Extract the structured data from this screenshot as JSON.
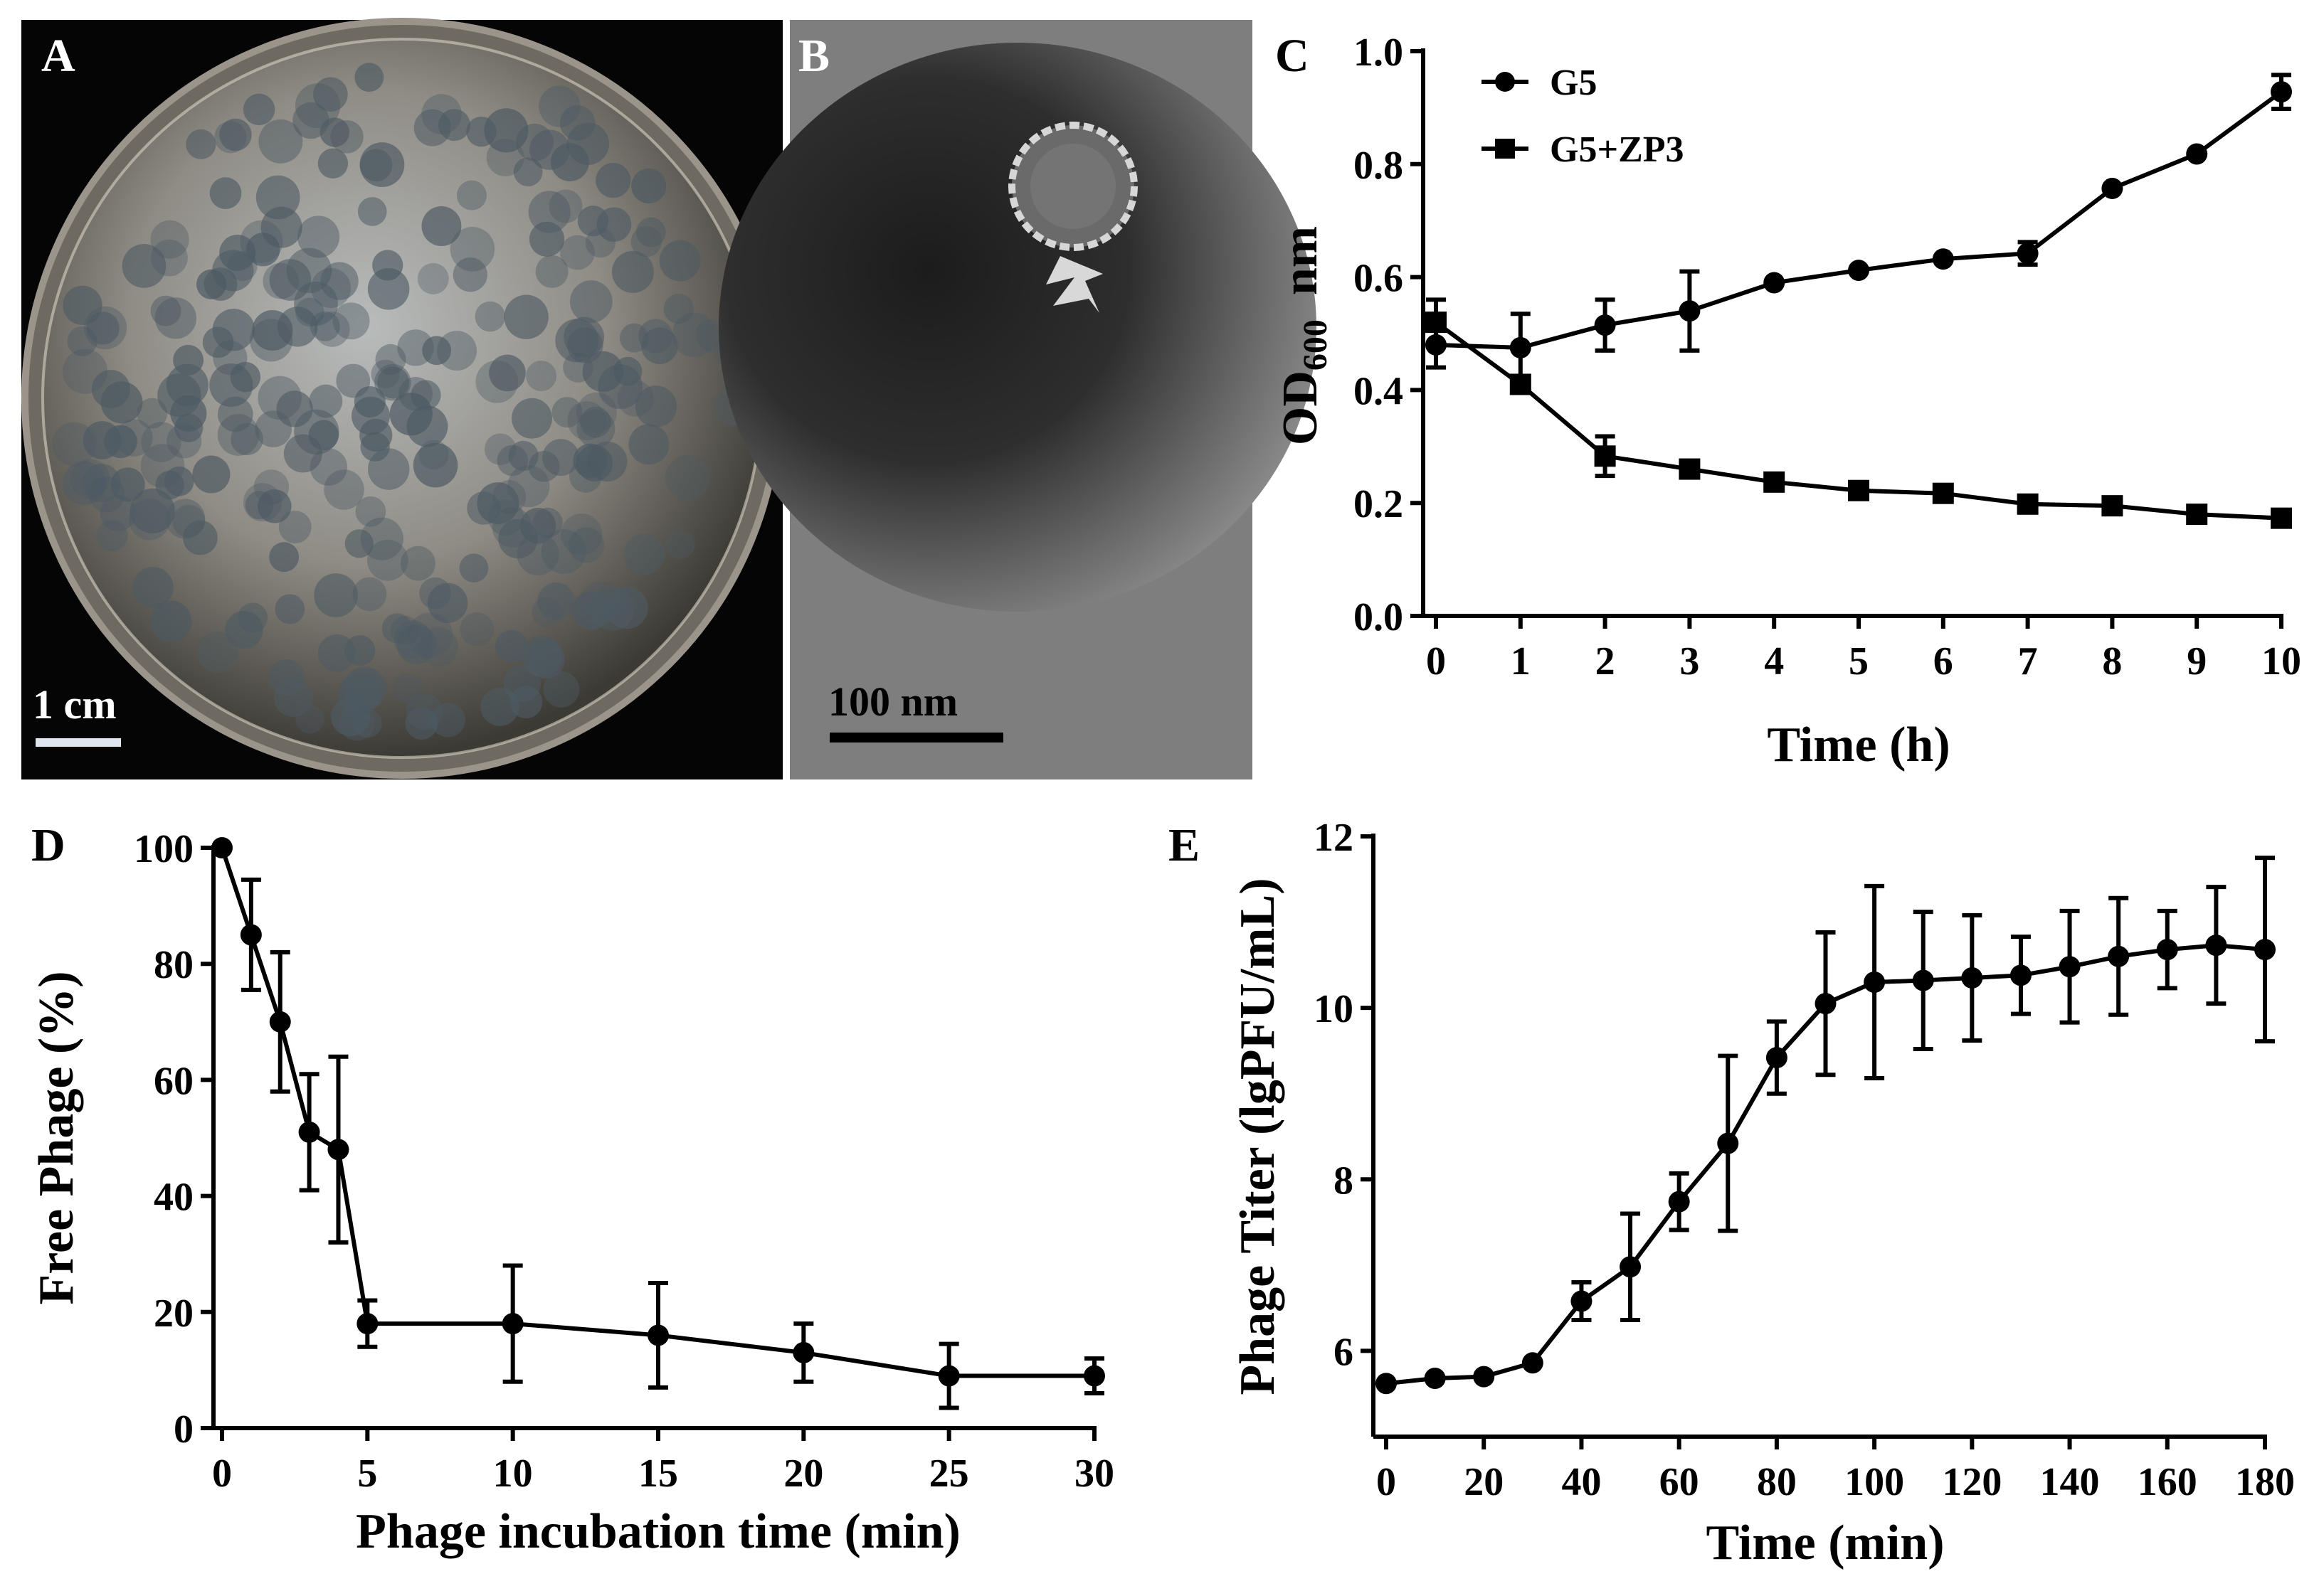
{
  "panels": {
    "A": {
      "letter": "A",
      "scale_label": "1 cm",
      "description": "Phage plaques on bacterial lawn in petri dish"
    },
    "B": {
      "letter": "B",
      "scale_label": "100 nm",
      "description": "TEM image of phage particle"
    }
  },
  "colors": {
    "line": "#000000",
    "photo_bg": "#050505",
    "tem_bg": "#707070"
  },
  "chart_data": [
    {
      "id": "C",
      "letter": "C",
      "type": "line",
      "xlabel": "Time (h)",
      "ylabel_main": "OD",
      "ylabel_sub": "600",
      "ylabel_unit": "nm",
      "xlim": [
        0,
        10
      ],
      "ylim": [
        0.0,
        1.0
      ],
      "xticks": [
        0,
        1,
        2,
        3,
        4,
        5,
        6,
        7,
        8,
        9,
        10
      ],
      "xtick_labels": [
        "0",
        "1",
        "2",
        "3",
        "4",
        "5",
        "6",
        "7",
        "8",
        "9",
        "10"
      ],
      "yticks": [
        0.0,
        0.2,
        0.4,
        0.6,
        0.8,
        1.0
      ],
      "ytick_labels": [
        "0.0",
        "0.2",
        "0.4",
        "0.6",
        "0.8",
        "1.0"
      ],
      "legend_position": "top-left",
      "series": [
        {
          "name": "G5",
          "marker": "circle",
          "x": [
            0,
            1,
            2,
            3,
            4,
            5,
            6,
            7,
            8,
            9,
            10
          ],
          "y": [
            0.48,
            0.475,
            0.515,
            0.54,
            0.59,
            0.612,
            0.632,
            0.642,
            0.757,
            0.818,
            0.928
          ],
          "err": [
            0.04,
            0.06,
            0.045,
            0.07,
            0.0,
            0.0,
            0.0,
            0.02,
            0.0,
            0.0,
            0.03
          ]
        },
        {
          "name": "G5+ZP3",
          "marker": "square",
          "x": [
            0,
            1,
            2,
            3,
            4,
            5,
            6,
            7,
            8,
            9,
            10
          ],
          "y": [
            0.52,
            0.41,
            0.283,
            0.26,
            0.237,
            0.222,
            0.217,
            0.198,
            0.195,
            0.18,
            0.173
          ],
          "err": [
            0.04,
            0.0,
            0.035,
            0.0,
            0.0,
            0.0,
            0.0,
            0.0,
            0.0,
            0.0,
            0.0
          ]
        }
      ]
    },
    {
      "id": "D",
      "letter": "D",
      "type": "line",
      "xlabel": "Phage incubation time (min)",
      "ylabel": "Free Phage (%)",
      "xlim": [
        0,
        30
      ],
      "ylim": [
        0,
        100
      ],
      "xticks": [
        0,
        5,
        10,
        15,
        20,
        25,
        30
      ],
      "xtick_labels": [
        "0",
        "5",
        "10",
        "15",
        "20",
        "25",
        "30"
      ],
      "yticks": [
        0,
        20,
        40,
        60,
        80,
        100
      ],
      "ytick_labels": [
        "0",
        "20",
        "40",
        "60",
        "80",
        "100"
      ],
      "series": [
        {
          "name": "Free Phage",
          "marker": "circle",
          "x": [
            0,
            1,
            2,
            3,
            4,
            5,
            10,
            15,
            20,
            25,
            30
          ],
          "y": [
            100,
            85,
            70,
            51,
            48,
            18,
            18,
            16,
            13,
            9,
            9
          ],
          "err": [
            0,
            9.5,
            12,
            10,
            16,
            4,
            10,
            9,
            5,
            5.5,
            3
          ]
        }
      ]
    },
    {
      "id": "E",
      "letter": "E",
      "type": "line",
      "xlabel": "Time (min)",
      "ylabel": "Phage Titer (lgPFU/mL)",
      "xlim": [
        0,
        180
      ],
      "ylim": [
        5,
        12
      ],
      "xticks": [
        0,
        20,
        40,
        60,
        80,
        100,
        120,
        140,
        160,
        180
      ],
      "xtick_labels": [
        "0",
        "20",
        "40",
        "60",
        "80",
        "100",
        "120",
        "140",
        "160",
        "180"
      ],
      "yticks": [
        6,
        8,
        10,
        12
      ],
      "ytick_labels": [
        "6",
        "8",
        "10",
        "12"
      ],
      "series": [
        {
          "name": "Phage Titer",
          "marker": "circle",
          "x": [
            0,
            10,
            20,
            30,
            40,
            50,
            60,
            70,
            80,
            90,
            100,
            110,
            120,
            130,
            140,
            150,
            160,
            170,
            180
          ],
          "y": [
            5.62,
            5.68,
            5.7,
            5.86,
            6.58,
            6.98,
            7.74,
            8.42,
            9.42,
            10.05,
            10.3,
            10.32,
            10.35,
            10.38,
            10.48,
            10.6,
            10.68,
            10.73,
            10.68
          ],
          "err": [
            0,
            0,
            0,
            0,
            0.22,
            0.62,
            0.33,
            1.02,
            0.42,
            0.83,
            1.12,
            0.8,
            0.73,
            0.45,
            0.65,
            0.68,
            0.45,
            0.68,
            1.07
          ]
        }
      ]
    }
  ]
}
